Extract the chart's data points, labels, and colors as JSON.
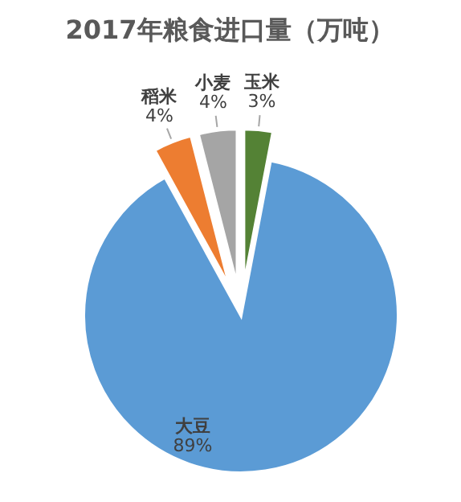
{
  "chart_data": {
    "type": "pie",
    "title": "2017年粮食进口量（万吨）",
    "categories": [
      "大豆",
      "稻米",
      "小麦",
      "玉米"
    ],
    "values": [
      89,
      4,
      4,
      3
    ],
    "colors": [
      "#5b9bd5",
      "#ed7d31",
      "#a5a5a5",
      "#548235"
    ],
    "value_labels": [
      "89%",
      "4%",
      "4%",
      "3%"
    ]
  }
}
